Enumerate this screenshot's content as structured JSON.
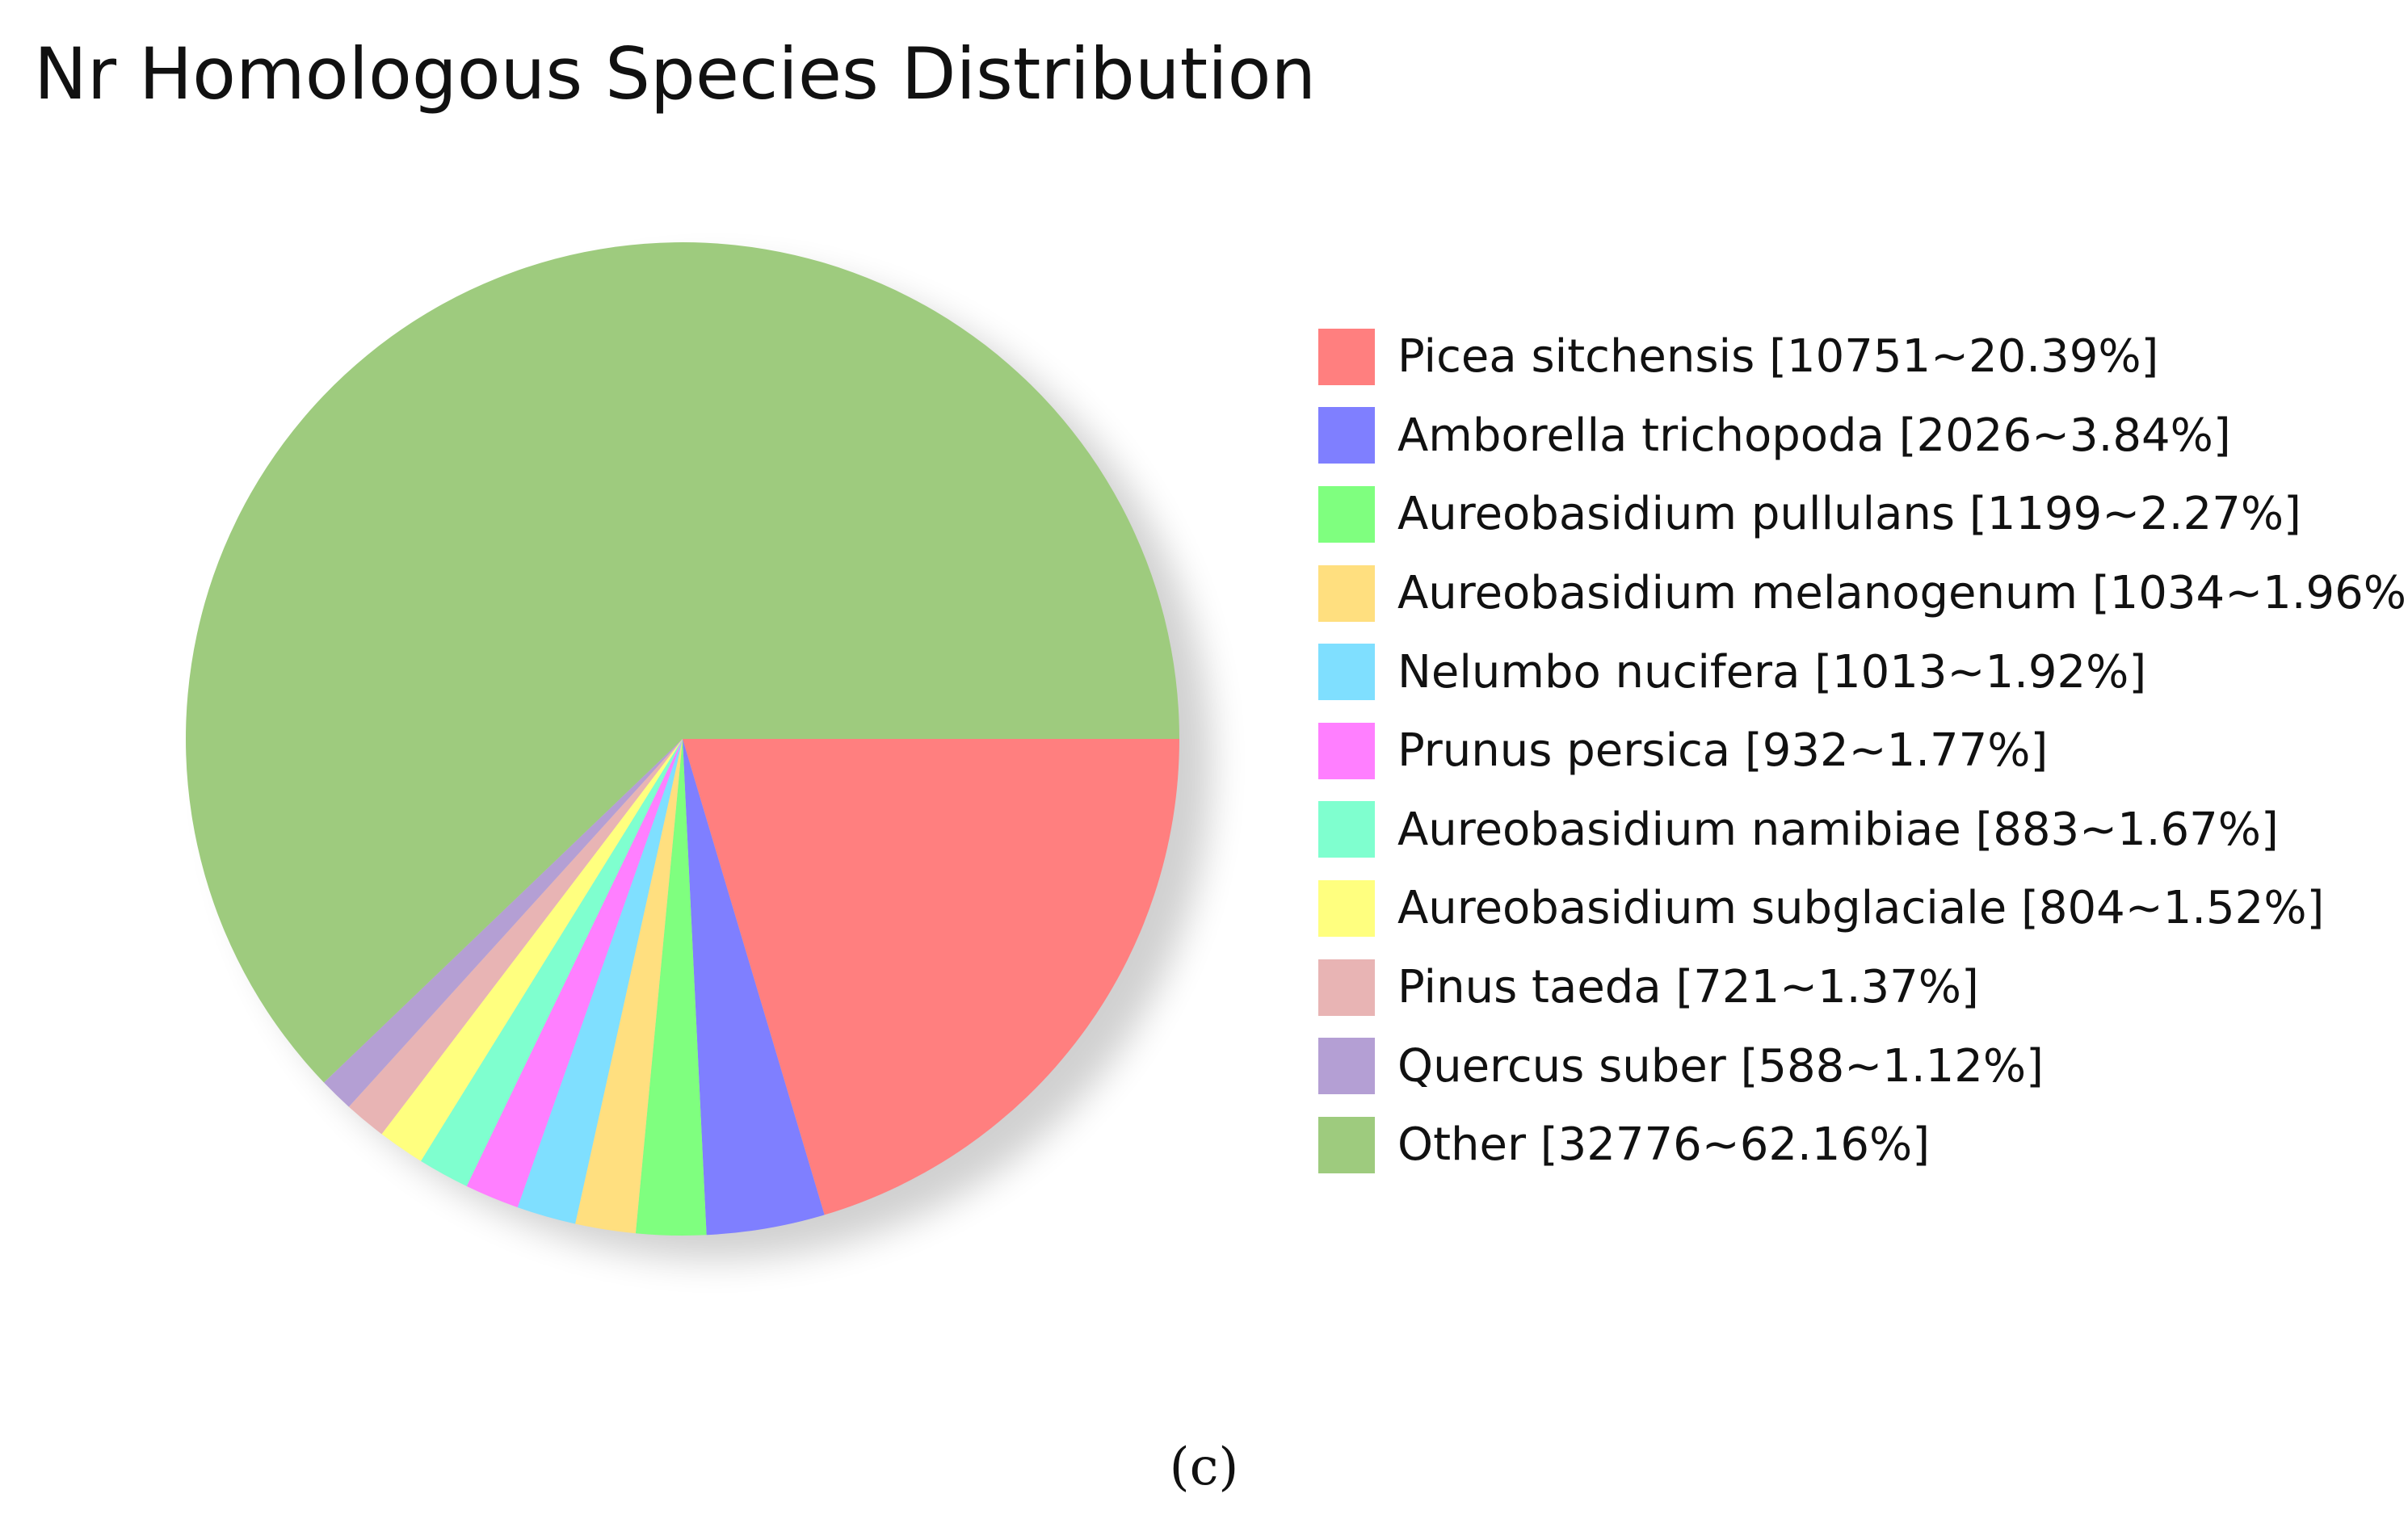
{
  "chart_data": {
    "type": "pie",
    "title": "Nr Homologous Species Distribution",
    "start_angle_deg": 0,
    "direction": "clockwise",
    "slices": [
      {
        "name": "Picea sitchensis",
        "count": 10751,
        "percent": 20.39,
        "color": "#FF7F7F",
        "label": "Picea sitchensis [10751~20.39%]"
      },
      {
        "name": "Amborella trichopoda",
        "count": 2026,
        "percent": 3.84,
        "color": "#7F7FFF",
        "label": "Amborella trichopoda [2026~3.84%]"
      },
      {
        "name": "Aureobasidium pullulans",
        "count": 1199,
        "percent": 2.27,
        "color": "#7FFF7F",
        "label": "Aureobasidium pullulans [1199~2.27%]"
      },
      {
        "name": "Aureobasidium melanogenum",
        "count": 1034,
        "percent": 1.96,
        "color": "#FFDF7F",
        "label": "Aureobasidium melanogenum [1034~1.96%]"
      },
      {
        "name": "Nelumbo nucifera",
        "count": 1013,
        "percent": 1.92,
        "color": "#7FDFFF",
        "label": "Nelumbo nucifera [1013~1.92%]"
      },
      {
        "name": "Prunus persica",
        "count": 932,
        "percent": 1.77,
        "color": "#FF7FFF",
        "label": "Prunus persica [932~1.77%]"
      },
      {
        "name": "Aureobasidium namibiae",
        "count": 883,
        "percent": 1.67,
        "color": "#7FFFCF",
        "label": "Aureobasidium namibiae [883~1.67%]"
      },
      {
        "name": "Aureobasidium subglaciale",
        "count": 804,
        "percent": 1.52,
        "color": "#FFFF7F",
        "label": "Aureobasidium subglaciale [804~1.52%]"
      },
      {
        "name": "Pinus taeda",
        "count": 721,
        "percent": 1.37,
        "color": "#E8B4B4",
        "label": "Pinus taeda [721~1.37%]"
      },
      {
        "name": "Quercus suber",
        "count": 588,
        "percent": 1.12,
        "color": "#B49FD4",
        "label": "Quercus suber [588~1.12%]"
      },
      {
        "name": "Other",
        "count": 32776,
        "percent": 62.16,
        "color": "#9ECB7E",
        "label": "Other [32776~62.16%]"
      }
    ]
  },
  "caption": "(c)"
}
